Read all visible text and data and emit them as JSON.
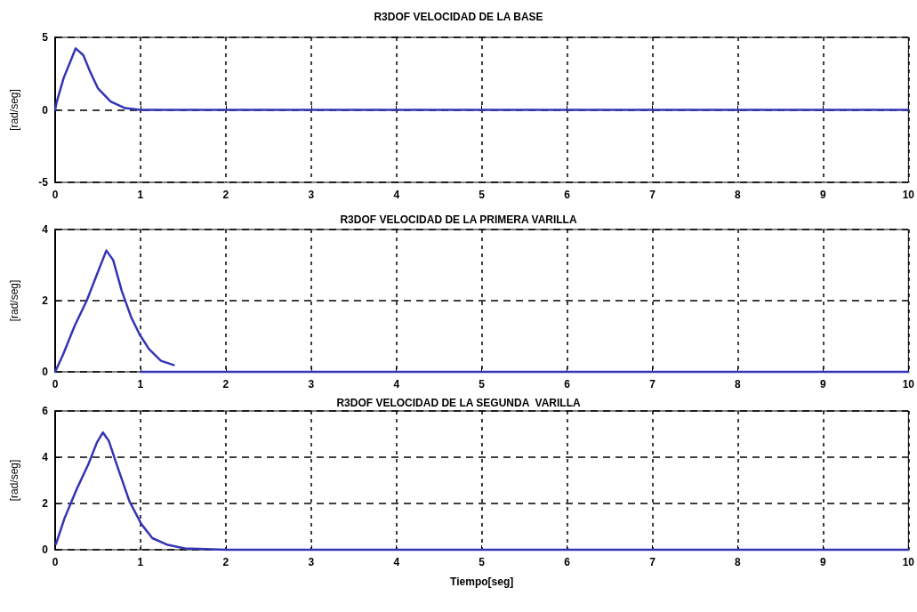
{
  "chart_data": [
    {
      "type": "line",
      "title": "R3DOF VELOCIDAD DE LA BASE",
      "ylabel": "[rad/seg]",
      "xlim": [
        0,
        10
      ],
      "xticks": [
        0,
        1,
        2,
        3,
        4,
        5,
        6,
        7,
        8,
        9,
        10
      ],
      "ylim": [
        -5,
        5
      ],
      "yticks": [
        -5,
        0,
        5
      ],
      "grid": true,
      "marker": "none",
      "line_style": "solid",
      "series": [
        {
          "color": "#3535b5",
          "x": [
            0,
            0.02,
            0.1,
            0.2,
            0.24,
            0.33,
            0.41,
            0.5,
            0.65,
            0.82,
            1,
            10
          ],
          "values": [
            0,
            0.58,
            2.2,
            3.65,
            4.24,
            3.77,
            2.63,
            1.5,
            0.58,
            0.12,
            0,
            0
          ]
        }
      ]
    },
    {
      "type": "line",
      "title": "R3DOF VELOCIDAD DE LA PRIMERA VARILLA",
      "ylabel": "[rad/seg]",
      "xlim": [
        0,
        10
      ],
      "xticks": [
        0,
        1,
        2,
        3,
        4,
        5,
        6,
        7,
        8,
        9,
        10
      ],
      "ylim": [
        0,
        4
      ],
      "yticks": [
        0,
        2,
        4
      ],
      "grid": true,
      "marker": "none",
      "line_style": "solid",
      "series": [
        {
          "color": "#3535b5",
          "x": [
            0,
            0.09,
            0.23,
            0.37,
            0.5,
            0.6,
            0.68,
            0.78,
            0.89,
            0.99,
            1.1,
            1.24,
            1.39
          ],
          "values": [
            0,
            0.47,
            1.3,
            2,
            2.8,
            3.41,
            3.14,
            2.28,
            1.54,
            1.05,
            0.64,
            0.31,
            0.19
          ]
        },
        {
          "color": "#3535b5",
          "x": [
            1,
            10
          ],
          "values": [
            0,
            0
          ]
        }
      ]
    },
    {
      "type": "line",
      "title": "R3DOF VELOCIDAD DE LA SEGUNDA  VARILLA",
      "ylabel": "[rad/seg]",
      "xlabel": "Tiempo[seg]",
      "xlim": [
        0,
        10
      ],
      "xticks": [
        0,
        1,
        2,
        3,
        4,
        5,
        6,
        7,
        8,
        9,
        10
      ],
      "ylim": [
        0,
        6
      ],
      "yticks": [
        0,
        2,
        4,
        6
      ],
      "grid": true,
      "marker": "none",
      "line_style": "solid",
      "series": [
        {
          "color": "#3535b5",
          "x": [
            0.01,
            0.11,
            0.25,
            0.39,
            0.49,
            0.56,
            0.63,
            0.73,
            0.87,
            1.01,
            1.14,
            1.32,
            1.52,
            2,
            10
          ],
          "values": [
            0.25,
            1.36,
            2.6,
            3.7,
            4.64,
            5.07,
            4.7,
            3.59,
            2.1,
            1.11,
            0.5,
            0.21,
            0.06,
            0,
            0
          ]
        }
      ]
    }
  ]
}
